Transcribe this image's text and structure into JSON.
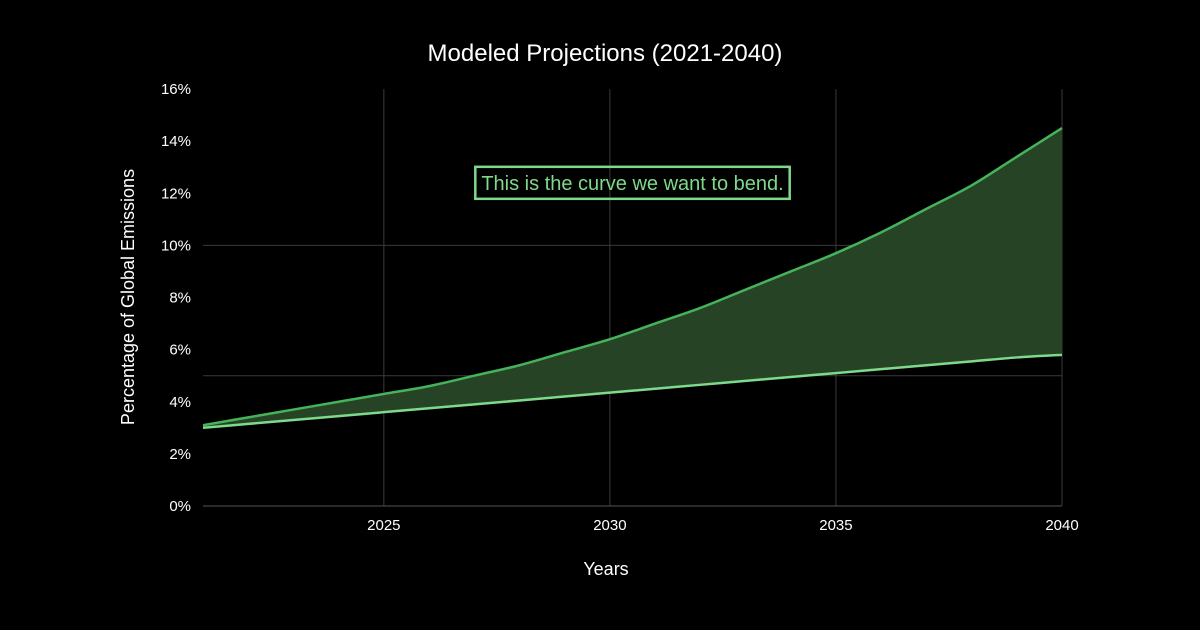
{
  "chart_data": {
    "type": "area",
    "title": "Modeled Projections (2021-2040)",
    "xlabel": "Years",
    "ylabel": "Percentage of Global Emissions",
    "xlim": [
      2021,
      2040
    ],
    "ylim": [
      0,
      16
    ],
    "x_ticks": [
      2025,
      2030,
      2035,
      2040
    ],
    "x_tick_labels": [
      "2025",
      "2030",
      "2035",
      "2040"
    ],
    "y_ticks": [
      0,
      2,
      4,
      6,
      8,
      10,
      12,
      14,
      16
    ],
    "y_tick_labels": [
      "0%",
      "2%",
      "4%",
      "6%",
      "8%",
      "10%",
      "12%",
      "14%",
      "16%"
    ],
    "x": [
      2021,
      2022,
      2023,
      2024,
      2025,
      2026,
      2027,
      2028,
      2029,
      2030,
      2031,
      2032,
      2033,
      2034,
      2035,
      2036,
      2037,
      2038,
      2039,
      2040
    ],
    "series": [
      {
        "color": "#44b35a",
        "values": [
          3.1,
          3.4,
          3.7,
          4.0,
          4.3,
          4.6,
          5.0,
          5.4,
          5.9,
          6.4,
          7.0,
          7.6,
          8.3,
          9.0,
          9.7,
          10.5,
          11.4,
          12.3,
          13.4,
          14.5
        ]
      },
      {
        "color": "#7fd98a",
        "values": [
          3.0,
          3.15,
          3.3,
          3.45,
          3.6,
          3.75,
          3.9,
          4.05,
          4.2,
          4.35,
          4.5,
          4.65,
          4.8,
          4.95,
          5.1,
          5.25,
          5.4,
          5.55,
          5.7,
          5.8
        ]
      }
    ],
    "fill_between": {
      "color": "#264326"
    },
    "grid": true,
    "grid_y_lines": [
      5,
      10
    ],
    "annotation": {
      "text": "This is the curve we want to bend.",
      "color": "#7fd98a",
      "x": 2030.5,
      "y": 12.4
    },
    "background": "#000000"
  }
}
